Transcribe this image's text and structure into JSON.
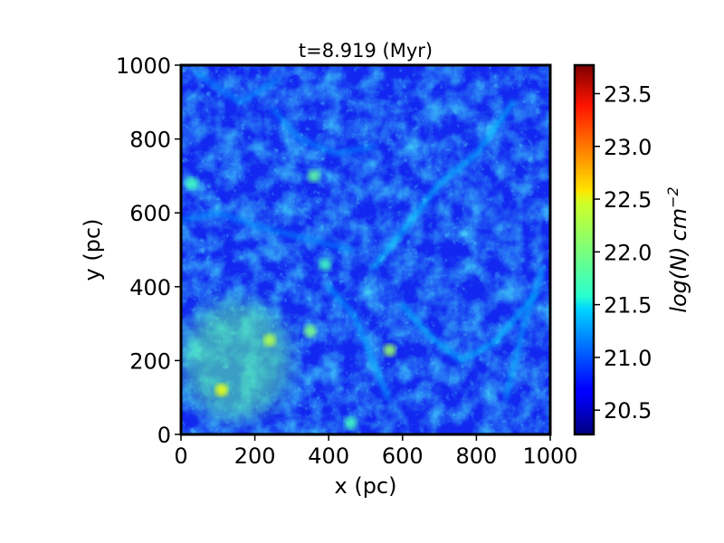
{
  "chart_data": {
    "type": "heatmap",
    "title": "t=8.919 (Myr)",
    "xlabel": "x (pc)",
    "ylabel": "y (pc)",
    "xlim": [
      0,
      1000
    ],
    "ylim": [
      0,
      1000
    ],
    "xticks": [
      0,
      200,
      400,
      600,
      800,
      1000
    ],
    "yticks": [
      0,
      200,
      400,
      600,
      800,
      1000
    ],
    "xtick_labels": [
      "0",
      "200",
      "400",
      "600",
      "800",
      "1000"
    ],
    "ytick_labels": [
      "0",
      "200",
      "400",
      "600",
      "800",
      "1000"
    ],
    "colorbar": {
      "label_text": "log(N)",
      "label_unit": "cm",
      "label_exp": "−2",
      "colormap": "jet",
      "range": [
        20.27,
        23.77
      ],
      "ticks": [
        20.5,
        21.0,
        21.5,
        22.0,
        22.5,
        23.0,
        23.5
      ],
      "tick_labels": [
        "20.5",
        "21.0",
        "21.5",
        "22.0",
        "22.5",
        "23.0",
        "23.5"
      ]
    },
    "background_color": "#1228f0",
    "features": [
      {
        "kind": "dense-region",
        "x": 150,
        "y": 200,
        "logN": 21.9
      },
      {
        "kind": "clump",
        "x": 110,
        "y": 120,
        "logN": 22.4
      },
      {
        "kind": "clump",
        "x": 240,
        "y": 255,
        "logN": 22.2
      },
      {
        "kind": "clump",
        "x": 350,
        "y": 280,
        "logN": 22.0
      },
      {
        "kind": "clump",
        "x": 565,
        "y": 228,
        "logN": 22.1
      },
      {
        "kind": "clump",
        "x": 360,
        "y": 700,
        "logN": 21.9
      },
      {
        "kind": "clump",
        "x": 30,
        "y": 680,
        "logN": 21.8
      },
      {
        "kind": "clump",
        "x": 460,
        "y": 30,
        "logN": 21.8
      },
      {
        "kind": "clump",
        "x": 390,
        "y": 460,
        "logN": 21.8
      },
      {
        "kind": "filament",
        "x": [
          520,
          600,
          700,
          800,
          900
        ],
        "y": [
          450,
          550,
          680,
          760,
          900
        ],
        "logN": 21.4
      },
      {
        "kind": "filament",
        "x": [
          400,
          470,
          520,
          560
        ],
        "y": [
          400,
          320,
          200,
          100
        ],
        "logN": 21.3
      },
      {
        "kind": "filament",
        "x": [
          0,
          100,
          220,
          340,
          460
        ],
        "y": [
          580,
          600,
          560,
          530,
          500
        ],
        "logN": 21.2
      },
      {
        "kind": "filament",
        "x": [
          600,
          680,
          760,
          850,
          960
        ],
        "y": [
          350,
          260,
          200,
          250,
          380
        ],
        "logN": 21.4
      },
      {
        "kind": "filament",
        "x": [
          250,
          320,
          420,
          520
        ],
        "y": [
          880,
          800,
          760,
          780
        ],
        "logN": 21.2
      },
      {
        "kind": "filament",
        "x": [
          880,
          930,
          980
        ],
        "y": [
          100,
          300,
          450
        ],
        "logN": 21.3
      },
      {
        "kind": "filament",
        "x": [
          40,
          160,
          260
        ],
        "y": [
          980,
          900,
          960
        ],
        "logN": 21.2
      }
    ]
  }
}
